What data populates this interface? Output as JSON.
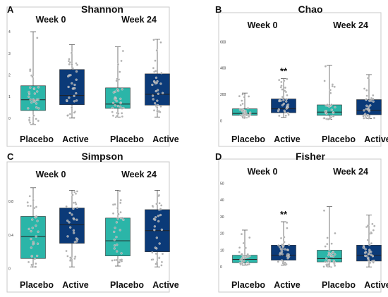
{
  "colors": {
    "placebo": "#2bb5a8",
    "active": "#0b3a78",
    "points": "#a7a7a7",
    "border": "#c8c8c8"
  },
  "chart_data": [
    {
      "type": "box",
      "letter": "A",
      "title": "Shannon",
      "groups": [
        "Week 0",
        "Week 24"
      ],
      "categories": [
        "Placebo",
        "Active"
      ],
      "ylim": [
        -0.3,
        4.1
      ],
      "yticks": [
        0,
        1,
        2,
        3,
        4
      ],
      "annotations": [
        "",
        "",
        "",
        ""
      ],
      "boxes": [
        {
          "group": "Week 0",
          "category": "Placebo",
          "min": -0.3,
          "q1": 0.35,
          "median": 0.85,
          "q3": 1.5,
          "max": 4.0
        },
        {
          "group": "Week 0",
          "category": "Active",
          "min": 0.0,
          "q1": 0.62,
          "median": 1.05,
          "q3": 2.25,
          "max": 3.4
        },
        {
          "group": "Week 24",
          "category": "Placebo",
          "min": 0.05,
          "q1": 0.45,
          "median": 0.65,
          "q3": 1.4,
          "max": 3.3
        },
        {
          "group": "Week 24",
          "category": "Active",
          "min": 0.05,
          "q1": 0.6,
          "median": 1.1,
          "q3": 2.05,
          "max": 3.65
        }
      ]
    },
    {
      "type": "box",
      "letter": "B",
      "title": "Chao",
      "groups": [
        "Week 0",
        "Week 24"
      ],
      "categories": [
        "Placebo",
        "Active"
      ],
      "ylim": [
        -30,
        650
      ],
      "yticks": [
        0,
        200,
        400,
        600
      ],
      "annotations": [
        "",
        "**",
        "",
        ""
      ],
      "boxes": [
        {
          "group": "Week 0",
          "category": "Placebo",
          "min": 20,
          "q1": 40,
          "median": 55,
          "q3": 90,
          "max": 210
        },
        {
          "group": "Week 0",
          "category": "Active",
          "min": 25,
          "q1": 60,
          "median": 90,
          "q3": 165,
          "max": 320
        },
        {
          "group": "Week 24",
          "category": "Placebo",
          "min": 10,
          "q1": 40,
          "median": 65,
          "q3": 120,
          "max": 420
        },
        {
          "group": "Week 24",
          "category": "Active",
          "min": 15,
          "q1": 45,
          "median": 80,
          "q3": 160,
          "max": 350
        }
      ]
    },
    {
      "type": "box",
      "letter": "C",
      "title": "Simpson",
      "groups": [
        "Week 0",
        "Week 24"
      ],
      "categories": [
        "Placebo",
        "Active"
      ],
      "ylim": [
        -0.02,
        1.0
      ],
      "yticks": [
        0.0,
        0.4,
        0.8
      ],
      "annotations": [
        "",
        "",
        "",
        ""
      ],
      "boxes": [
        {
          "group": "Week 0",
          "category": "Placebo",
          "min": 0.02,
          "q1": 0.12,
          "median": 0.38,
          "q3": 0.62,
          "max": 0.96
        },
        {
          "group": "Week 0",
          "category": "Active",
          "min": 0.02,
          "q1": 0.3,
          "median": 0.52,
          "q3": 0.72,
          "max": 0.93
        },
        {
          "group": "Week 24",
          "category": "Placebo",
          "min": 0.03,
          "q1": 0.15,
          "median": 0.33,
          "q3": 0.6,
          "max": 0.93
        },
        {
          "group": "Week 24",
          "category": "Active",
          "min": 0.02,
          "q1": 0.2,
          "median": 0.45,
          "q3": 0.7,
          "max": 0.93
        }
      ]
    },
    {
      "type": "box",
      "letter": "D",
      "title": "Fisher",
      "groups": [
        "Week 0",
        "Week 24"
      ],
      "categories": [
        "Placebo",
        "Active"
      ],
      "ylim": [
        -2,
        51
      ],
      "yticks": [
        0,
        10,
        20,
        30,
        40,
        50
      ],
      "annotations": [
        "",
        "**",
        "",
        ""
      ],
      "boxes": [
        {
          "group": "Week 0",
          "category": "Placebo",
          "min": 1,
          "q1": 2.5,
          "median": 4.5,
          "q3": 7,
          "max": 22
        },
        {
          "group": "Week 0",
          "category": "Active",
          "min": 1,
          "q1": 4,
          "median": 7,
          "q3": 13,
          "max": 27
        },
        {
          "group": "Week 24",
          "category": "Placebo",
          "min": 0,
          "q1": 3,
          "median": 5,
          "q3": 10,
          "max": 36
        },
        {
          "group": "Week 24",
          "category": "Active",
          "min": 0,
          "q1": 3.5,
          "median": 7,
          "q3": 13,
          "max": 31
        }
      ]
    }
  ]
}
